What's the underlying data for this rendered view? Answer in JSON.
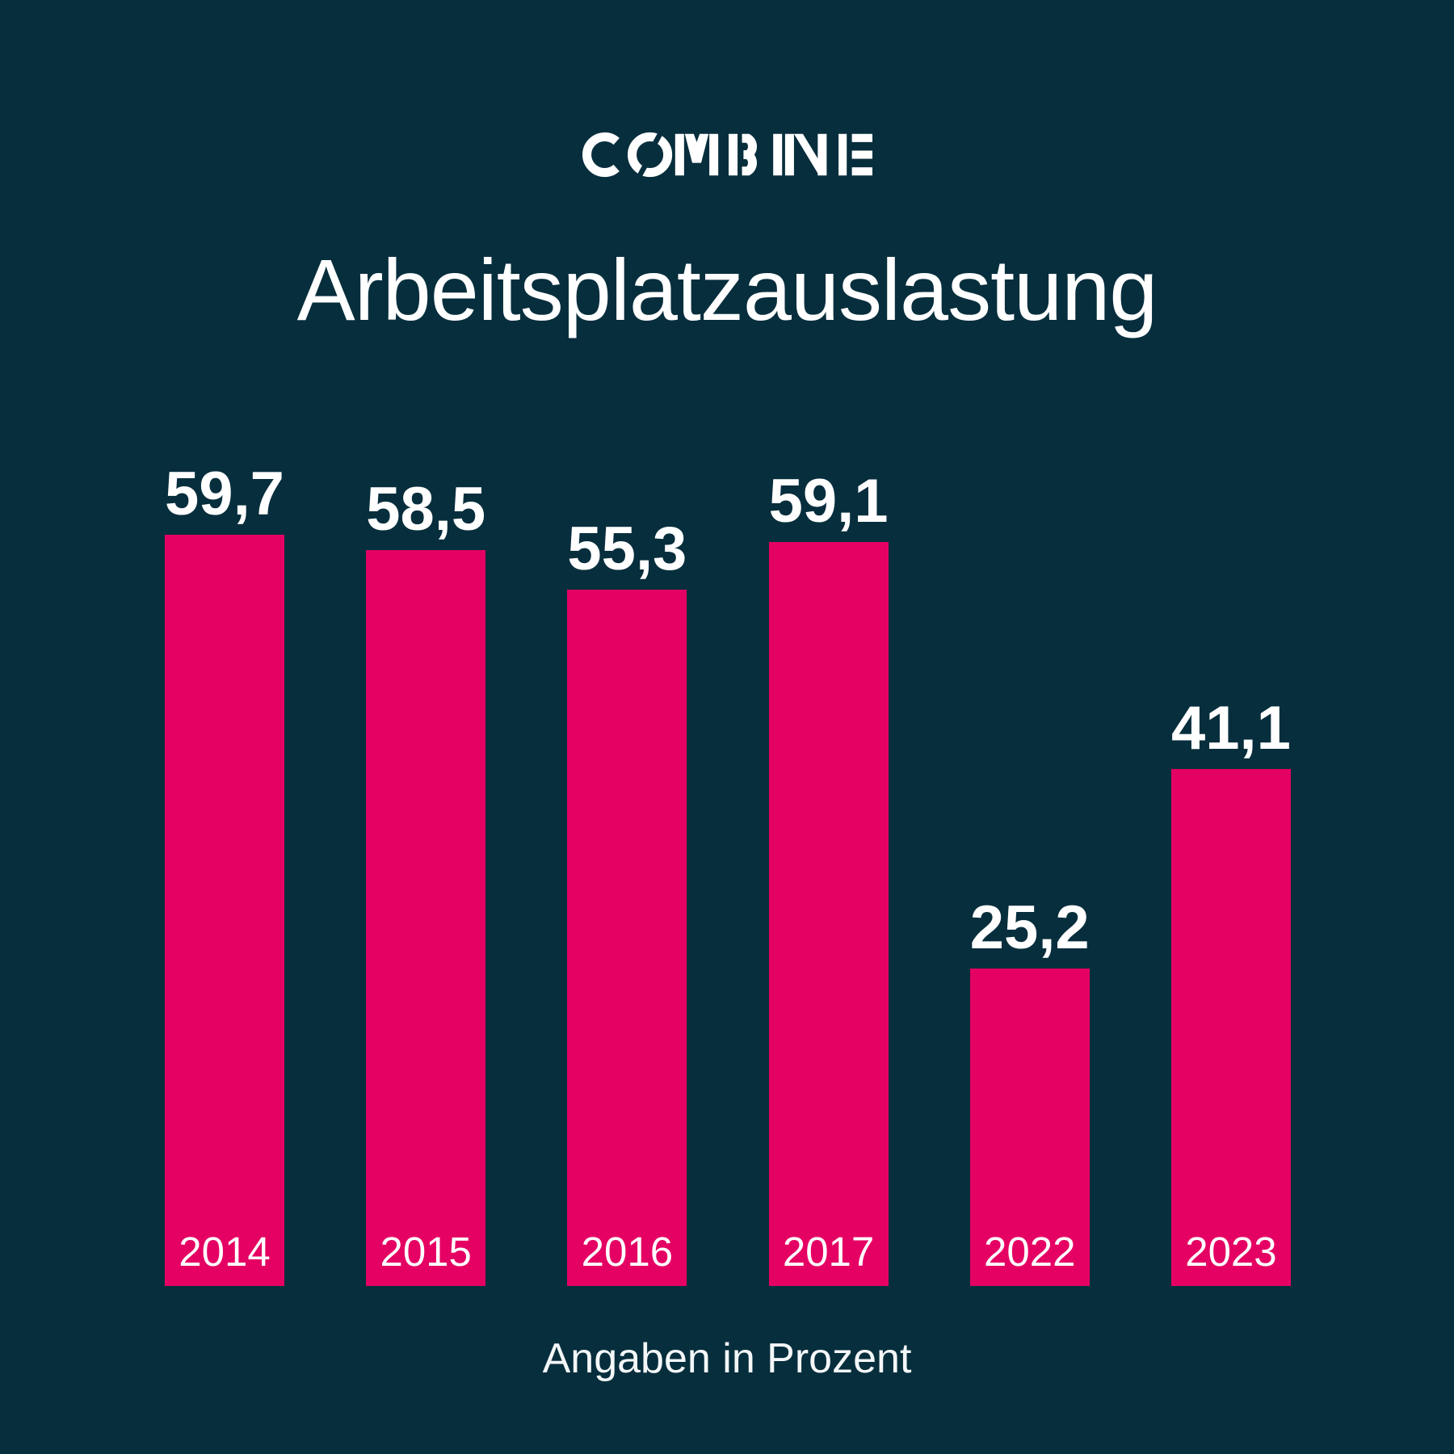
{
  "brand": {
    "logo_text": "COMBINE"
  },
  "title": "Arbeitsplatzauslastung",
  "footer": {
    "note": "Angaben in Prozent"
  },
  "colors": {
    "background": "#072e3c",
    "bar": "#e50063",
    "text": "#ffffff"
  },
  "chart_data": {
    "type": "bar",
    "title": "Arbeitsplatzauslastung",
    "categories": [
      "2014",
      "2015",
      "2016",
      "2017",
      "2022",
      "2023"
    ],
    "values": [
      59.7,
      58.5,
      55.3,
      59.1,
      25.2,
      41.1
    ],
    "value_labels": [
      "59,7",
      "58,5",
      "55,3",
      "59,1",
      "25,2",
      "41,1"
    ],
    "unit_note": "Angaben in Prozent",
    "ylim": [
      0,
      63
    ],
    "grid": false,
    "legend": false,
    "bar_color": "#e50063",
    "value_label_position": "above-bar",
    "category_label_position": "inside-bar-bottom"
  }
}
